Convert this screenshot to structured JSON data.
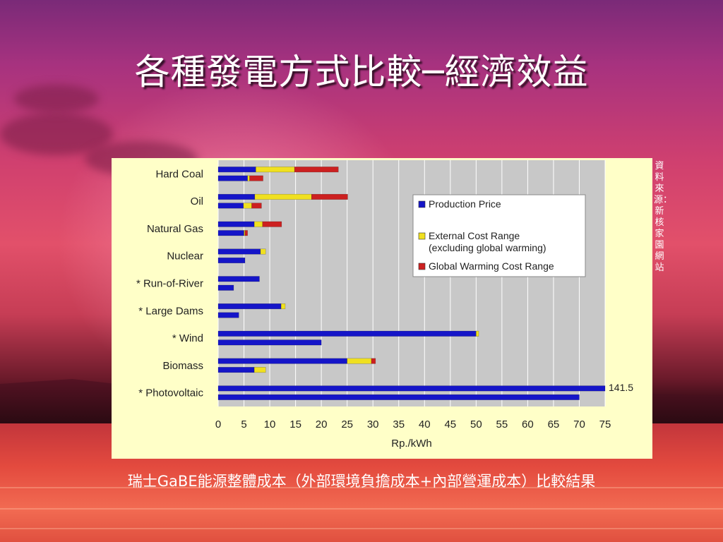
{
  "slide": {
    "title": "各種發電方式比較─經濟效益",
    "source_note": "資料來源：新核家園網站",
    "caption": "瑞士GaBE能源整體成本（外部環境負擔成本+內部營運成本）比較結果"
  },
  "colors": {
    "production": "#1515c8",
    "external": "#f0e020",
    "warming": "#cc2020",
    "plot_bg": "#c8c8c8",
    "panel_bg": "#ffffc8"
  },
  "chart_data": {
    "type": "bar",
    "orientation": "horizontal",
    "stacked": true,
    "xlabel": "Rp./kWh",
    "xlim": [
      0,
      75
    ],
    "xticks": [
      0,
      5,
      10,
      15,
      20,
      25,
      30,
      35,
      40,
      45,
      50,
      55,
      60,
      65,
      70,
      75
    ],
    "grid": true,
    "legend_position": "top-right",
    "legend": [
      {
        "key": "production",
        "label": "Production Price"
      },
      {
        "key": "external",
        "label": "External Cost Range",
        "label2": "(excluding global warming)"
      },
      {
        "key": "warming",
        "label": "Global Warming Cost Range"
      }
    ],
    "categories": [
      {
        "name": "Hard Coal",
        "bars": [
          {
            "production": 7.3,
            "external": 7.5,
            "warming": 8.5
          },
          {
            "production": 5.7,
            "external": 0.4,
            "warming": 2.6
          }
        ]
      },
      {
        "name": "Oil",
        "bars": [
          {
            "production": 7.1,
            "external": 11.0,
            "warming": 7.0
          },
          {
            "production": 4.9,
            "external": 1.6,
            "warming": 1.9
          }
        ]
      },
      {
        "name": "Natural Gas",
        "bars": [
          {
            "production": 7.0,
            "external": 1.6,
            "warming": 3.7
          },
          {
            "production": 5.0,
            "external": 0.2,
            "warming": 0.5
          }
        ]
      },
      {
        "name": "Nuclear",
        "bars": [
          {
            "production": 8.2,
            "external": 1.0,
            "warming": 0
          },
          {
            "production": 5.2,
            "external": 0,
            "warming": 0
          }
        ]
      },
      {
        "name": "* Run-of-River",
        "bars": [
          {
            "production": 8.0,
            "external": 0,
            "warming": 0
          },
          {
            "production": 3.0,
            "external": 0,
            "warming": 0
          }
        ]
      },
      {
        "name": "* Large Dams",
        "bars": [
          {
            "production": 12.2,
            "external": 0.8,
            "warming": 0
          },
          {
            "production": 4.0,
            "external": 0,
            "warming": 0
          }
        ]
      },
      {
        "name": "* Wind",
        "bars": [
          {
            "production": 50.0,
            "external": 0.5,
            "warming": 0
          },
          {
            "production": 20.0,
            "external": 0,
            "warming": 0
          }
        ]
      },
      {
        "name": "Biomass",
        "bars": [
          {
            "production": 25.0,
            "external": 4.7,
            "warming": 0.8
          },
          {
            "production": 7.0,
            "external": 2.2,
            "warming": 0
          }
        ]
      },
      {
        "name": "* Photovoltaic",
        "bars": [
          {
            "production": 141.5,
            "external": 0,
            "warming": 0,
            "label": "141.5"
          },
          {
            "production": 70.0,
            "external": 0,
            "warming": 0
          }
        ]
      }
    ]
  }
}
